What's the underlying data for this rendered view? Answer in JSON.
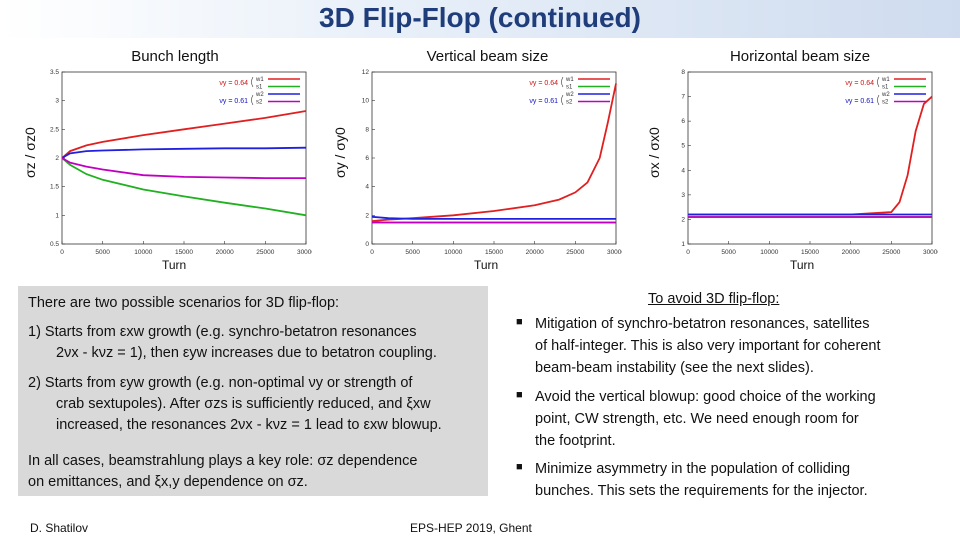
{
  "slide": {
    "title": "3D Flip-Flop (continued)",
    "footer_left": "D. Shatilov",
    "footer_center": "EPS-HEP 2019, Ghent"
  },
  "plots": [
    {
      "title": "Bunch length",
      "ylabel": "σz / σz0",
      "xlabel": "Turn",
      "legend": {
        "q1": "νy = 0.64",
        "q2": "νy = 0.61",
        "entries": [
          "w1",
          "s1",
          "w2",
          "s2"
        ]
      },
      "xticks": [
        "0",
        "5000",
        "10000",
        "15000",
        "20000",
        "25000",
        "30000"
      ],
      "yticks": [
        "0.5",
        "1",
        "1.5",
        "2",
        "2.5",
        "3",
        "3.5"
      ]
    },
    {
      "title": "Vertical beam size",
      "ylabel": "σy / σy0",
      "xlabel": "Turn",
      "legend": {
        "q1": "νy = 0.64",
        "q2": "νy = 0.61",
        "entries": [
          "w1",
          "s1",
          "w2",
          "s2"
        ]
      },
      "xticks": [
        "0",
        "5000",
        "10000",
        "15000",
        "20000",
        "25000",
        "30000"
      ],
      "yticks": [
        "0",
        "2",
        "4",
        "6",
        "8",
        "10",
        "12"
      ]
    },
    {
      "title": "Horizontal beam size",
      "ylabel": "σx / σx0",
      "xlabel": "Turn",
      "legend": {
        "q1": "νy = 0.64",
        "q2": "νy = 0.61",
        "entries": [
          "w1",
          "s1",
          "w2",
          "s2"
        ]
      },
      "xticks": [
        "0",
        "5000",
        "10000",
        "15000",
        "20000",
        "25000",
        "30000"
      ],
      "yticks": [
        "1",
        "2",
        "3",
        "4",
        "5",
        "6",
        "7",
        "8"
      ]
    }
  ],
  "chart_data": [
    {
      "type": "line",
      "title": "Bunch length",
      "xlabel": "Turn",
      "ylabel": "σz / σz0",
      "xlim": [
        0,
        30000
      ],
      "ylim": [
        0.5,
        3.5
      ],
      "x": [
        0,
        1000,
        3000,
        5000,
        10000,
        15000,
        20000,
        25000,
        30000
      ],
      "series": [
        {
          "name": "w1",
          "color": "#e02020",
          "values": [
            2.0,
            2.12,
            2.22,
            2.28,
            2.4,
            2.5,
            2.6,
            2.7,
            2.82
          ]
        },
        {
          "name": "s1",
          "color": "#20b020",
          "values": [
            2.0,
            1.88,
            1.72,
            1.62,
            1.45,
            1.33,
            1.22,
            1.12,
            1.0
          ]
        },
        {
          "name": "w2",
          "color": "#2020e0",
          "values": [
            2.0,
            2.08,
            2.12,
            2.13,
            2.15,
            2.16,
            2.17,
            2.17,
            2.18
          ]
        },
        {
          "name": "s2",
          "color": "#c000c0",
          "values": [
            2.0,
            1.92,
            1.85,
            1.8,
            1.7,
            1.67,
            1.66,
            1.65,
            1.65
          ]
        }
      ]
    },
    {
      "type": "line",
      "title": "Vertical beam size",
      "xlabel": "Turn",
      "ylabel": "σy / σy0",
      "xlim": [
        0,
        30000
      ],
      "ylim": [
        0,
        12
      ],
      "x": [
        0,
        2000,
        5000,
        10000,
        15000,
        20000,
        23000,
        25000,
        26500,
        28000,
        29000,
        30000
      ],
      "series": [
        {
          "name": "w1",
          "color": "#e02020",
          "values": [
            1.6,
            1.7,
            1.8,
            2.0,
            2.3,
            2.7,
            3.1,
            3.6,
            4.3,
            6.0,
            8.5,
            11.2
          ]
        },
        {
          "name": "s1",
          "color": "#20b020",
          "values": [
            1.5,
            1.5,
            1.5,
            1.5,
            1.5,
            1.5,
            1.5,
            1.5,
            1.5,
            1.5,
            1.5,
            1.5
          ]
        },
        {
          "name": "w2",
          "color": "#2020e0",
          "values": [
            1.9,
            1.8,
            1.75,
            1.75,
            1.75,
            1.75,
            1.75,
            1.75,
            1.75,
            1.75,
            1.75,
            1.75
          ]
        },
        {
          "name": "s2",
          "color": "#c000c0",
          "values": [
            1.5,
            1.5,
            1.5,
            1.5,
            1.5,
            1.5,
            1.5,
            1.5,
            1.5,
            1.5,
            1.5,
            1.5
          ]
        }
      ]
    },
    {
      "type": "line",
      "title": "Horizontal beam size",
      "xlabel": "Turn",
      "ylabel": "σx / σx0",
      "xlim": [
        0,
        30000
      ],
      "ylim": [
        1,
        8
      ],
      "x": [
        0,
        5000,
        10000,
        15000,
        20000,
        25000,
        26000,
        27000,
        28000,
        29000,
        30000
      ],
      "series": [
        {
          "name": "w1",
          "color": "#e02020",
          "values": [
            2.2,
            2.2,
            2.2,
            2.2,
            2.2,
            2.3,
            2.7,
            3.8,
            5.6,
            6.7,
            7.0
          ]
        },
        {
          "name": "s1",
          "color": "#20b020",
          "values": [
            2.1,
            2.1,
            2.1,
            2.1,
            2.1,
            2.1,
            2.1,
            2.1,
            2.1,
            2.1,
            2.1
          ]
        },
        {
          "name": "w2",
          "color": "#2020e0",
          "values": [
            2.2,
            2.2,
            2.2,
            2.2,
            2.2,
            2.2,
            2.2,
            2.2,
            2.2,
            2.2,
            2.2
          ]
        },
        {
          "name": "s2",
          "color": "#c000c0",
          "values": [
            2.1,
            2.1,
            2.1,
            2.1,
            2.1,
            2.1,
            2.1,
            2.1,
            2.1,
            2.1,
            2.1
          ]
        }
      ]
    }
  ],
  "left": {
    "intro": "There are two possible scenarios for 3D flip-flop:",
    "item1_a": "1)  Starts from εxw growth (e.g. synchro-betatron resonances",
    "item1_b": "2νx - kνz = 1), then εyw increases due to betatron coupling.",
    "item2_a": "2)  Starts from εyw growth (e.g. non-optimal νy or strength of",
    "item2_b": "crab sextupoles). After σzs is sufficiently reduced, and ξxw",
    "item2_c": "increased, the resonances 2νx - kνz = 1 lead to εxw blowup.",
    "outro_a": "In all cases, beamstrahlung plays a key role: σz dependence",
    "outro_b": "on emittances, and ξx,y dependence on σz."
  },
  "right": {
    "heading": "To avoid 3D flip-flop:",
    "b1_a": "Mitigation of synchro-betatron resonances, satellites",
    "b1_b": "of half-integer. This is also very important for coherent",
    "b1_c": "beam-beam instability (see the next slides).",
    "b2_a": "Avoid the vertical blowup: good choice of the working",
    "b2_b": "point, CW strength, etc. We need enough room for",
    "b2_c": "the footprint.",
    "b3_a": "Minimize asymmetry in the population of colliding",
    "b3_b": "bunches. This sets the requirements for the injector.",
    "bullet": "■"
  }
}
